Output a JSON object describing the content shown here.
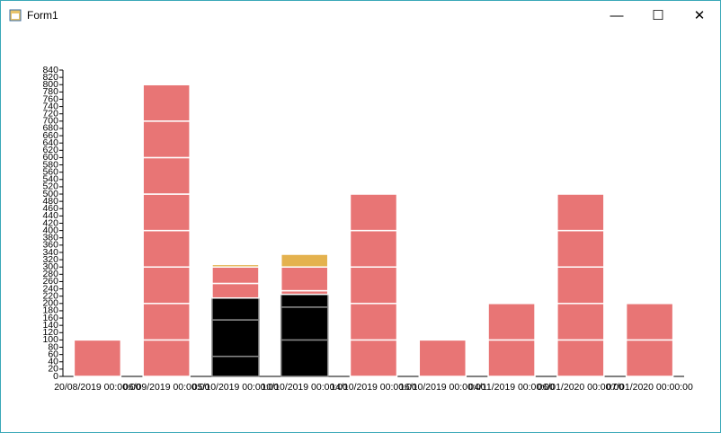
{
  "window": {
    "title": "Form1"
  },
  "chart_data": {
    "type": "stacked-bar",
    "categories": [
      "20/08/2019 00:00:00",
      "06/09/2019 00:00:00",
      "05/10/2019 00:00:00",
      "10/10/2019 00:00:00",
      "14/10/2019 00:00:00",
      "16/10/2019 00:00:00",
      "04/11/2019 00:00:00",
      "06/01/2020 00:00:00",
      "07/01/2020 00:00:00"
    ],
    "stacks": [
      [
        {
          "value": 100,
          "color": "#e87575"
        }
      ],
      [
        {
          "value": 100,
          "color": "#e87575"
        },
        {
          "value": 100,
          "color": "#e87575"
        },
        {
          "value": 100,
          "color": "#e87575"
        },
        {
          "value": 100,
          "color": "#e87575"
        },
        {
          "value": 100,
          "color": "#e87575"
        },
        {
          "value": 100,
          "color": "#e87575"
        },
        {
          "value": 100,
          "color": "#e87575"
        },
        {
          "value": 100,
          "color": "#e87575"
        }
      ],
      [
        {
          "value": 55,
          "color": "#000000"
        },
        {
          "value": 100,
          "color": "#000000"
        },
        {
          "value": 60,
          "color": "#000000"
        },
        {
          "value": 40,
          "color": "#e87575"
        },
        {
          "value": 45,
          "color": "#e87575"
        },
        {
          "value": 7,
          "color": "#e4b24e"
        }
      ],
      [
        {
          "value": 100,
          "color": "#000000"
        },
        {
          "value": 90,
          "color": "#000000"
        },
        {
          "value": 35,
          "color": "#000000"
        },
        {
          "value": 10,
          "color": "#e87575"
        },
        {
          "value": 65,
          "color": "#e87575"
        },
        {
          "value": 35,
          "color": "#e4b24e"
        }
      ],
      [
        {
          "value": 100,
          "color": "#e87575"
        },
        {
          "value": 100,
          "color": "#e87575"
        },
        {
          "value": 100,
          "color": "#e87575"
        },
        {
          "value": 100,
          "color": "#e87575"
        },
        {
          "value": 100,
          "color": "#e87575"
        }
      ],
      [
        {
          "value": 100,
          "color": "#e87575"
        }
      ],
      [
        {
          "value": 100,
          "color": "#e87575"
        },
        {
          "value": 100,
          "color": "#e87575"
        }
      ],
      [
        {
          "value": 100,
          "color": "#e87575"
        },
        {
          "value": 100,
          "color": "#e87575"
        },
        {
          "value": 100,
          "color": "#e87575"
        },
        {
          "value": 100,
          "color": "#e87575"
        },
        {
          "value": 100,
          "color": "#e87575"
        }
      ],
      [
        {
          "value": 100,
          "color": "#e87575"
        },
        {
          "value": 100,
          "color": "#e87575"
        }
      ]
    ],
    "ylim": [
      0,
      840
    ],
    "yticks": [
      0,
      20,
      40,
      60,
      80,
      100,
      120,
      140,
      160,
      180,
      200,
      220,
      240,
      260,
      280,
      300,
      320,
      340,
      360,
      380,
      400,
      420,
      440,
      460,
      480,
      500,
      520,
      540,
      560,
      580,
      600,
      620,
      640,
      660,
      680,
      700,
      720,
      740,
      760,
      780,
      800,
      820,
      840
    ]
  }
}
